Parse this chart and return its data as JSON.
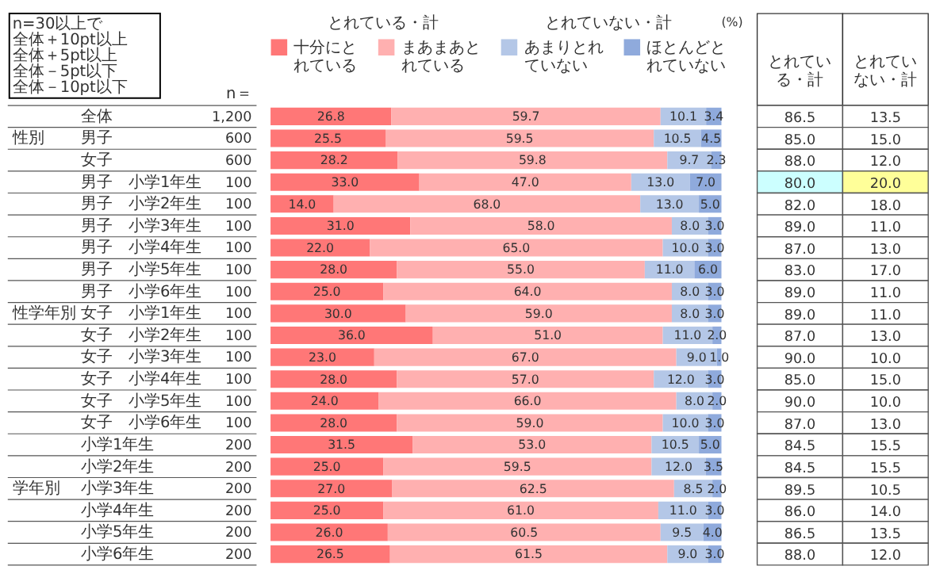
{
  "chart_data": [
    {
      "type": "heatmap",
      "categories": [
        "n＝"
      ],
      "y_categories": [
        "全体",
        "男子",
        "女子",
        "男子　小学1年生",
        "男子　小学2年生",
        "男子　小学3年生",
        "男子　小学4年生",
        "男子　小学5年生",
        "男子　小学6年生",
        "女子　小学1年生",
        "女子　小学2年生",
        "女子　小学3年生",
        "女子　小学4年生",
        "女子　小学5年生",
        "女子　小学6年生",
        "小学1年生",
        "小学2年生",
        "小学3年生",
        "小学4年生",
        "小学5年生",
        "小学6年生"
      ],
      "y2_categories": [
        null,
        "性別",
        null,
        null,
        null,
        null,
        null,
        null,
        null,
        "性学年別",
        null,
        null,
        null,
        null,
        null,
        null,
        null,
        "学年別",
        null,
        null,
        null
      ],
      "cells": [
        [
          1200
        ],
        [
          600
        ],
        [
          600
        ],
        [
          100
        ],
        [
          100
        ],
        [
          100
        ],
        [
          100
        ],
        [
          100
        ],
        [
          100
        ],
        [
          100
        ],
        [
          100
        ],
        [
          100
        ],
        [
          100
        ],
        [
          100
        ],
        [
          100
        ],
        [
          200
        ],
        [
          200
        ],
        [
          200
        ],
        [
          200
        ],
        [
          200
        ],
        [
          200
        ]
      ],
      "cell_labels": [
        [
          "1,200"
        ],
        [
          "600"
        ],
        [
          "600"
        ],
        [
          "100"
        ],
        [
          "100"
        ],
        [
          "100"
        ],
        [
          "100"
        ],
        [
          "100"
        ],
        [
          "100"
        ],
        [
          "100"
        ],
        [
          "100"
        ],
        [
          "100"
        ],
        [
          "100"
        ],
        [
          "100"
        ],
        [
          "100"
        ],
        [
          "200"
        ],
        [
          "200"
        ],
        [
          "200"
        ],
        [
          "200"
        ],
        [
          "200"
        ],
        [
          "200"
        ]
      ]
    },
    {
      "type": "bar",
      "orientation": "horizontal",
      "stacked": true,
      "legend": "top",
      "tick_labels": false,
      "xlim": [
        0,
        100
      ],
      "categories": [
        "全体",
        "男子",
        "女子",
        "男子　小学1年生",
        "男子　小学2年生",
        "男子　小学3年生",
        "男子　小学4年生",
        "男子　小学5年生",
        "男子　小学6年生",
        "女子　小学1年生",
        "女子　小学2年生",
        "女子　小学3年生",
        "女子　小学4年生",
        "女子　小学5年生",
        "女子　小学6年生",
        "小学1年生",
        "小学2年生",
        "小学3年生",
        "小学4年生",
        "小学5年生",
        "小学6年生"
      ],
      "annotations": [
        "とれている・計",
        "とれていない・計",
        "(%)"
      ],
      "series": [
        {
          "name": "十分にとれている",
          "color": "#ff7777",
          "values": [
            26.8,
            25.5,
            28.2,
            33.0,
            14.0,
            31.0,
            22.0,
            28.0,
            25.0,
            30.0,
            36.0,
            23.0,
            28.0,
            24.0,
            28.0,
            31.5,
            25.0,
            27.0,
            25.0,
            26.0,
            26.5
          ],
          "value_labels": [
            "26.8",
            "25.5",
            "28.2",
            "33.0",
            "14.0",
            "31.0",
            "22.0",
            "28.0",
            "25.0",
            "30.0",
            "36.0",
            "23.0",
            "28.0",
            "24.0",
            "28.0",
            "31.5",
            "25.0",
            "27.0",
            "25.0",
            "26.0",
            "26.5"
          ]
        },
        {
          "name": "まあまあとれている",
          "color": "#ffb0b0",
          "values": [
            59.7,
            59.5,
            59.8,
            47.0,
            68.0,
            58.0,
            65.0,
            55.0,
            64.0,
            59.0,
            51.0,
            67.0,
            57.0,
            66.0,
            59.0,
            53.0,
            59.5,
            62.5,
            61.0,
            60.5,
            61.5
          ],
          "value_labels": [
            "59.7",
            "59.5",
            "59.8",
            "47.0",
            "68.0",
            "58.0",
            "65.0",
            "55.0",
            "64.0",
            "59.0",
            "51.0",
            "67.0",
            "57.0",
            "66.0",
            "59.0",
            "53.0",
            "59.5",
            "62.5",
            "61.0",
            "60.5",
            "61.5"
          ]
        },
        {
          "name": "あまりとれていない",
          "color": "#b4c7e7",
          "values": [
            10.1,
            10.5,
            9.7,
            13.0,
            13.0,
            8.0,
            10.0,
            11.0,
            8.0,
            8.0,
            11.0,
            9.0,
            12.0,
            8.0,
            10.0,
            10.5,
            12.0,
            8.5,
            11.0,
            9.5,
            9.0
          ],
          "value_labels": [
            "10.1",
            "10.5",
            "9.7",
            "13.0",
            "13.0",
            "8.0",
            "10.0",
            "11.0",
            "8.0",
            "8.0",
            "11.0",
            "9.0",
            "12.0",
            "8.0",
            "10.0",
            "10.5",
            "12.0",
            "8.5",
            "11.0",
            "9.5",
            "9.0"
          ]
        },
        {
          "name": "ほとんどとれていない",
          "color": "#8faadc",
          "values": [
            3.4,
            4.5,
            2.3,
            7.0,
            5.0,
            3.0,
            3.0,
            6.0,
            3.0,
            3.0,
            2.0,
            1.0,
            3.0,
            2.0,
            3.0,
            5.0,
            3.5,
            2.0,
            3.0,
            4.0,
            3.0
          ],
          "value_labels": [
            "3.4",
            "4.5",
            "2.3",
            "7.0",
            "5.0",
            "3.0",
            "3.0",
            "6.0",
            "3.0",
            "3.0",
            "2.0",
            "1.0",
            "3.0",
            "2.0",
            "3.0",
            "5.0",
            "3.5",
            "2.0",
            "3.0",
            "4.0",
            "3.0"
          ]
        }
      ]
    },
    {
      "type": "heatmap",
      "categories": [
        "とれている・計",
        "とれていない・計"
      ],
      "tick_labels": false,
      "y_categories": [
        "全体",
        "男子",
        "女子",
        "男子　小学1年生",
        "男子　小学2年生",
        "男子　小学3年生",
        "男子　小学4年生",
        "男子　小学5年生",
        "男子　小学6年生",
        "女子　小学1年生",
        "女子　小学2年生",
        "女子　小学3年生",
        "女子　小学4年生",
        "女子　小学5年生",
        "女子　小学6年生",
        "小学1年生",
        "小学2年生",
        "小学3年生",
        "小学4年生",
        "小学5年生",
        "小学6年生"
      ],
      "annotations": [
        "n=30以上で",
        "全体＋10pt以上",
        "全体＋5pt以上",
        "全体－5pt以下",
        "全体－10pt以下"
      ],
      "cell_labels": [
        [
          "86.5",
          "13.5"
        ],
        [
          "85.0",
          "15.0"
        ],
        [
          "88.0",
          "12.0"
        ],
        [
          "80.0",
          "20.0"
        ],
        [
          "82.0",
          "18.0"
        ],
        [
          "89.0",
          "11.0"
        ],
        [
          "87.0",
          "13.0"
        ],
        [
          "83.0",
          "17.0"
        ],
        [
          "89.0",
          "11.0"
        ],
        [
          "89.0",
          "11.0"
        ],
        [
          "87.0",
          "13.0"
        ],
        [
          "90.0",
          "10.0"
        ],
        [
          "85.0",
          "15.0"
        ],
        [
          "90.0",
          "10.0"
        ],
        [
          "87.0",
          "13.0"
        ],
        [
          "84.5",
          "15.5"
        ],
        [
          "84.5",
          "15.5"
        ],
        [
          "89.5",
          "10.5"
        ],
        [
          "86.0",
          "14.0"
        ],
        [
          "86.5",
          "13.5"
        ],
        [
          "88.0",
          "12.0"
        ]
      ],
      "cells": [
        [
          86.5,
          13.5
        ],
        [
          85.0,
          15.0
        ],
        [
          88.0,
          12.0
        ],
        [
          80.0,
          20.0
        ],
        [
          82.0,
          18.0
        ],
        [
          89.0,
          11.0
        ],
        [
          87.0,
          13.0
        ],
        [
          83.0,
          17.0
        ],
        [
          89.0,
          11.0
        ],
        [
          89.0,
          11.0
        ],
        [
          87.0,
          13.0
        ],
        [
          90.0,
          10.0
        ],
        [
          85.0,
          15.0
        ],
        [
          90.0,
          10.0
        ],
        [
          87.0,
          13.0
        ],
        [
          84.5,
          15.5
        ],
        [
          84.5,
          15.5
        ],
        [
          89.5,
          10.5
        ],
        [
          86.0,
          14.0
        ],
        [
          86.5,
          13.5
        ],
        [
          88.0,
          12.0
        ]
      ],
      "colors": [
        [
          null,
          null
        ],
        [
          null,
          null
        ],
        [
          null,
          null
        ],
        [
          "#ccffff",
          "#ffff99"
        ],
        [
          null,
          null
        ],
        [
          null,
          null
        ],
        [
          null,
          null
        ],
        [
          null,
          null
        ],
        [
          null,
          null
        ],
        [
          null,
          null
        ],
        [
          null,
          null
        ],
        [
          null,
          null
        ],
        [
          null,
          null
        ],
        [
          null,
          null
        ],
        [
          null,
          null
        ],
        [
          null,
          null
        ],
        [
          null,
          null
        ],
        [
          null,
          null
        ],
        [
          null,
          null
        ],
        [
          null,
          null
        ],
        [
          null,
          null
        ]
      ]
    }
  ]
}
